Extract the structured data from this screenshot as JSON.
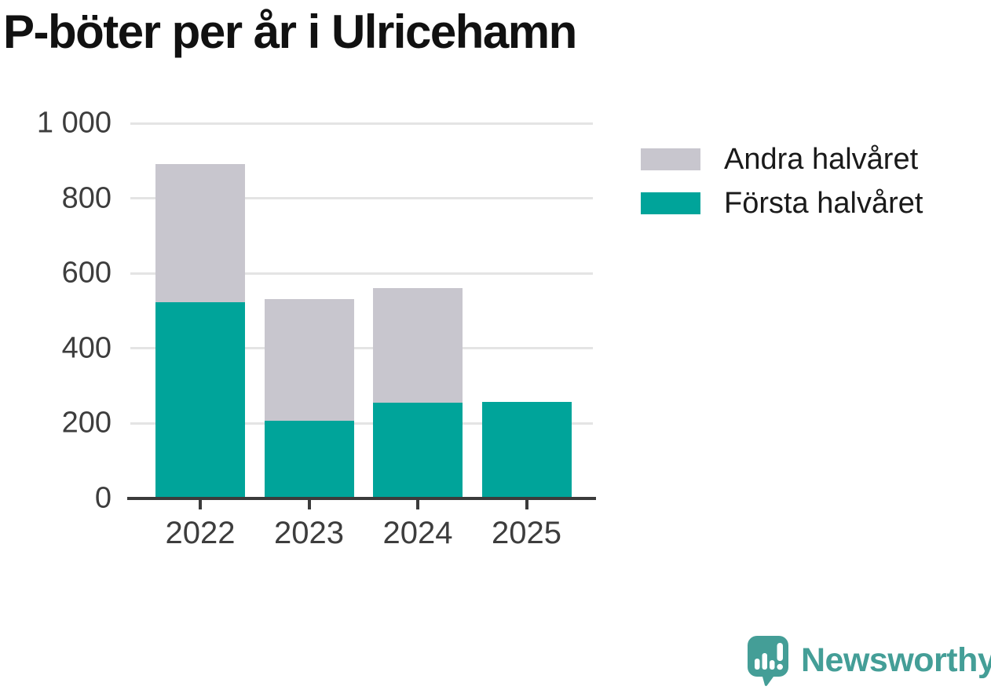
{
  "title": "P-böter per år i Ulricehamn",
  "chart_data": {
    "type": "bar",
    "stacked": true,
    "title": "P-böter per år i Ulricehamn",
    "xlabel": "",
    "ylabel": "",
    "categories": [
      "2022",
      "2023",
      "2024",
      "2025"
    ],
    "series": [
      {
        "name": "Första halvåret",
        "color": "#00a49a",
        "values": [
          522,
          207,
          255,
          257
        ]
      },
      {
        "name": "Andra halvåret",
        "color": "#c8c6ce",
        "values": [
          370,
          325,
          305,
          0
        ]
      }
    ],
    "totals": [
      892,
      532,
      560,
      257
    ],
    "ylim": [
      0,
      1000
    ],
    "yticks": [
      0,
      200,
      400,
      600,
      800,
      1000
    ],
    "ytick_labels": [
      "0",
      "200",
      "400",
      "600",
      "800",
      "1 000"
    ],
    "grid": true,
    "legend_position": "right-top"
  },
  "legend": [
    {
      "label": "Andra halvåret",
      "color": "#c8c6ce"
    },
    {
      "label": "Första halvåret",
      "color": "#00a49a"
    }
  ],
  "branding": {
    "logo_text": "Newsworthy",
    "logo_color": "#449e97"
  },
  "colors": {
    "first_half": "#00a49a",
    "second_half": "#c8c6ce",
    "axis": "#3b3b3b",
    "gridline": "#e4e4e4",
    "text": "#3d3d3d",
    "title": "#111111",
    "background": "#ffffff"
  }
}
